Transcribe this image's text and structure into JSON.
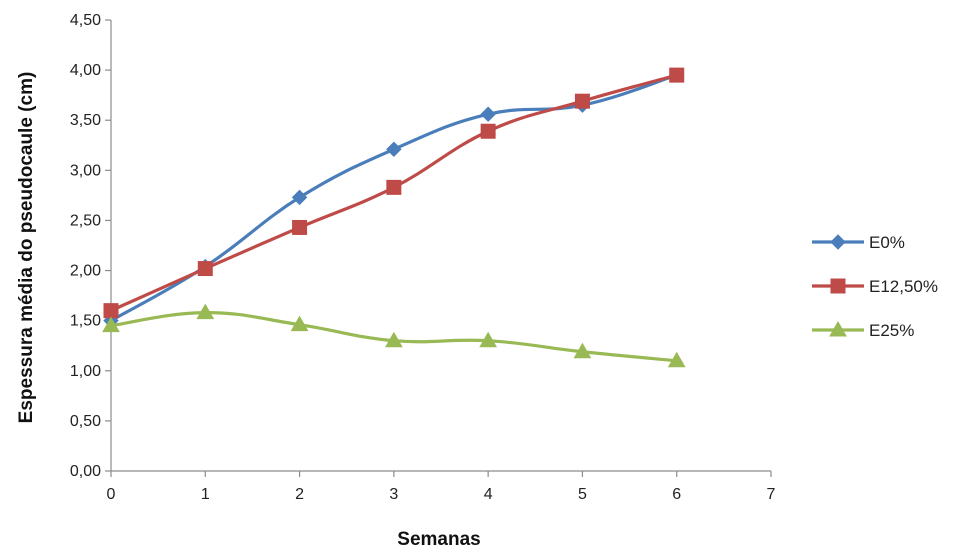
{
  "chart_data": {
    "type": "line",
    "title": "",
    "xlabel": "Semanas",
    "ylabel": "Espessura média do pseudocaule (cm)",
    "xlim": [
      0,
      7
    ],
    "ylim": [
      0,
      4.5
    ],
    "x_ticks": [
      "0",
      "1",
      "2",
      "3",
      "4",
      "5",
      "6",
      "7"
    ],
    "y_ticks": [
      "0,00",
      "0,50",
      "1,00",
      "1,50",
      "2,00",
      "2,50",
      "3,00",
      "3,50",
      "4,00",
      "4,50"
    ],
    "grid": false,
    "legend_position": "right",
    "x": [
      0,
      1,
      2,
      3,
      4,
      5,
      6
    ],
    "series": [
      {
        "name": "E0%",
        "color": "#4a7ebb",
        "marker": "diamond",
        "values": [
          1.5,
          2.04,
          2.73,
          3.21,
          3.56,
          3.65,
          3.95
        ]
      },
      {
        "name": "E12,50%",
        "color": "#be4b48",
        "marker": "square",
        "values": [
          1.6,
          2.02,
          2.43,
          2.83,
          3.39,
          3.69,
          3.95
        ]
      },
      {
        "name": "E25%",
        "color": "#98b954",
        "marker": "triangle",
        "values": [
          1.45,
          1.58,
          1.46,
          1.3,
          1.3,
          1.19,
          1.1
        ]
      }
    ]
  }
}
